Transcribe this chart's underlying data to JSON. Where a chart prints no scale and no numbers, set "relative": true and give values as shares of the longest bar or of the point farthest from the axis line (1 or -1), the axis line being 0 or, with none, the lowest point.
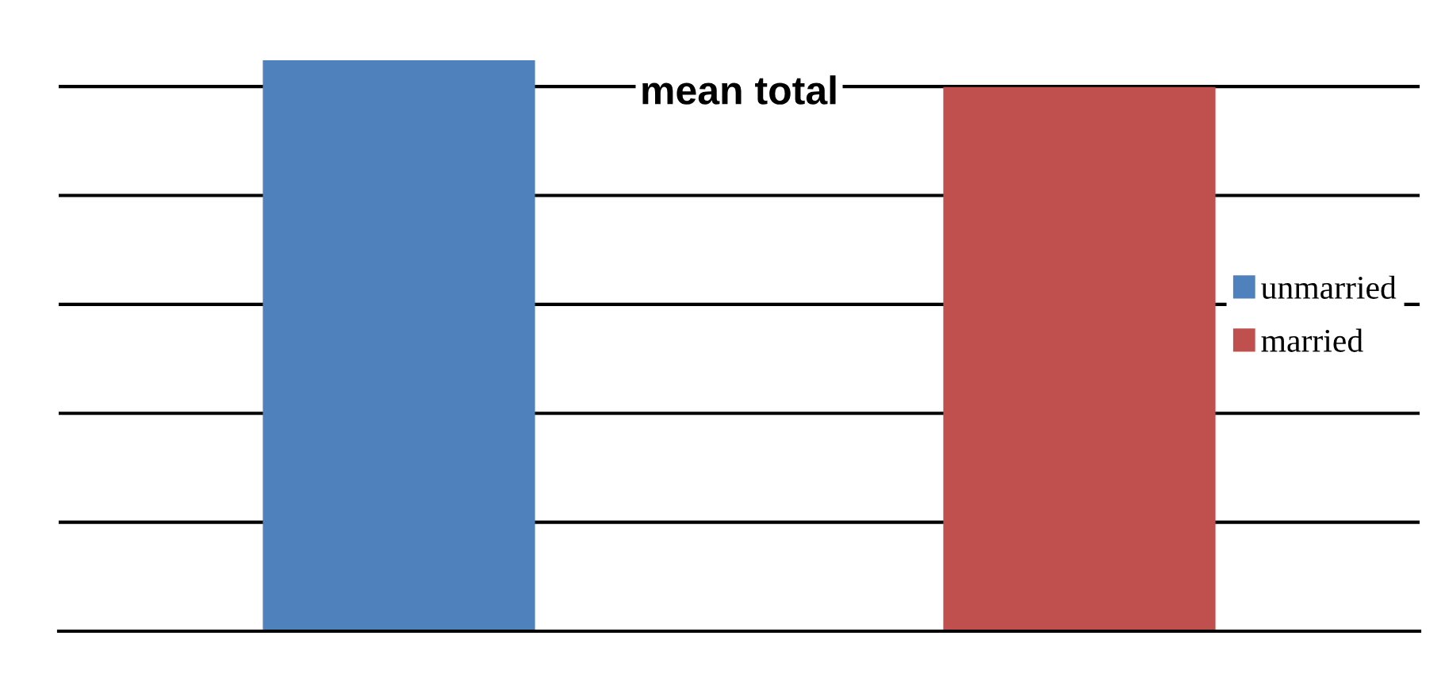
{
  "chart_data": {
    "type": "bar",
    "title": "mean total",
    "relative": true,
    "categories": [
      null,
      null
    ],
    "series": [
      {
        "name": "unmarried",
        "color": "#4f81bd",
        "values": [
          1,
          null
        ]
      },
      {
        "name": "married",
        "color": "#c0504d",
        "values": [
          null,
          0.953
        ]
      }
    ],
    "stacked": true,
    "grid": "y",
    "legend": "right"
  }
}
